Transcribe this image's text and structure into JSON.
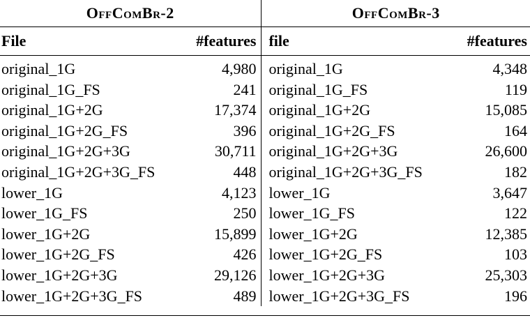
{
  "groups": {
    "left": "OffComBr-2",
    "right": "OffComBr-3"
  },
  "headers": {
    "left_file": "File",
    "left_features": "#features",
    "right_file": "file",
    "right_features": "#features"
  },
  "rows": [
    {
      "lf": "original_1G",
      "lv": "4,980",
      "rf": "original_1G",
      "rv": "4,348"
    },
    {
      "lf": "original_1G_FS",
      "lv": "241",
      "rf": "original_1G_FS",
      "rv": "119"
    },
    {
      "lf": "original_1G+2G",
      "lv": "17,374",
      "rf": "original_1G+2G",
      "rv": "15,085"
    },
    {
      "lf": "original_1G+2G_FS",
      "lv": "396",
      "rf": "original_1G+2G_FS",
      "rv": "164"
    },
    {
      "lf": "original_1G+2G+3G",
      "lv": "30,711",
      "rf": "original_1G+2G+3G",
      "rv": "26,600"
    },
    {
      "lf": "original_1G+2G+3G_FS",
      "lv": "448",
      "rf": "original_1G+2G+3G_FS",
      "rv": "182"
    },
    {
      "lf": "lower_1G",
      "lv": "4,123",
      "rf": "lower_1G",
      "rv": "3,647"
    },
    {
      "lf": "lower_1G_FS",
      "lv": "250",
      "rf": "lower_1G_FS",
      "rv": "122"
    },
    {
      "lf": "lower_1G+2G",
      "lv": "15,899",
      "rf": "lower_1G+2G",
      "rv": "12,385"
    },
    {
      "lf": "lower_1G+2G_FS",
      "lv": "426",
      "rf": "lower_1G+2G_FS",
      "rv": "103"
    },
    {
      "lf": "lower_1G+2G+3G",
      "lv": "29,126",
      "rf": "lower_1G+2G+3G",
      "rv": "25,303"
    },
    {
      "lf": "lower_1G+2G+3G_FS",
      "lv": "489",
      "rf": "lower_1G+2G+3G_FS",
      "rv": "196"
    }
  ]
}
